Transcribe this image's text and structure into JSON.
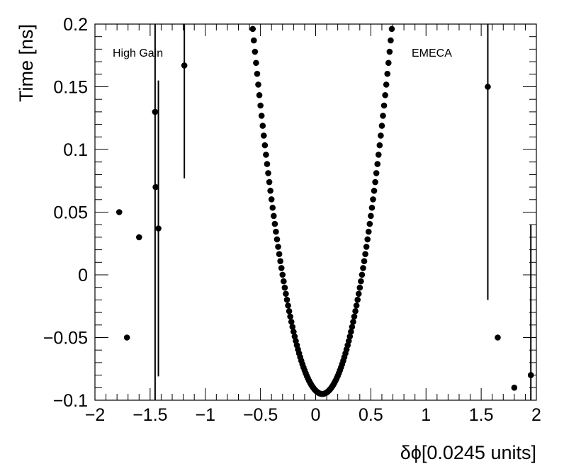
{
  "chart_data": {
    "type": "scatter",
    "xlabel": "δϕ[0.0245 units]",
    "ylabel": "Time [ns]",
    "xlim": [
      -2,
      2
    ],
    "ylim": [
      -0.1,
      0.2
    ],
    "x_ticks": [
      {
        "value": -2,
        "label": "−2"
      },
      {
        "value": -1.5,
        "label": "−1.5"
      },
      {
        "value": -1,
        "label": "−1"
      },
      {
        "value": -0.5,
        "label": "−0.5"
      },
      {
        "value": 0,
        "label": "0"
      },
      {
        "value": 0.5,
        "label": "0.5"
      },
      {
        "value": 1,
        "label": "1"
      },
      {
        "value": 1.5,
        "label": "1.5"
      },
      {
        "value": 2,
        "label": "2"
      }
    ],
    "y_ticks": [
      {
        "value": -0.1,
        "label": "−0.1"
      },
      {
        "value": -0.05,
        "label": "−0.05"
      },
      {
        "value": 0,
        "label": "0"
      },
      {
        "value": 0.05,
        "label": "0.05"
      },
      {
        "value": 0.1,
        "label": "0.1"
      },
      {
        "value": 0.15,
        "label": "0.15"
      },
      {
        "value": 0.2,
        "label": "0.2"
      }
    ],
    "annotations": [
      {
        "text": "High Gain",
        "x": -1.8,
        "y": 0.18
      },
      {
        "text": "EMECA",
        "x": 0.88,
        "y": 0.18
      }
    ],
    "outliers": [
      {
        "x": -1.78,
        "y": 0.05
      },
      {
        "x": -1.71,
        "y": -0.05
      },
      {
        "x": -1.6,
        "y": 0.03
      },
      {
        "x": -1.455,
        "y": 0.13,
        "err_low": 0.23,
        "err_high": 0.23
      },
      {
        "x": -1.45,
        "y": 0.07
      },
      {
        "x": -1.425,
        "y": 0.037,
        "err_low": 0.118,
        "err_high": 0.118
      },
      {
        "x": -1.19,
        "y": 0.167,
        "err_low": 0.09,
        "err_high": 0.09
      },
      {
        "x": 1.56,
        "y": 0.15,
        "err_low": 0.17,
        "err_high": 0.17
      },
      {
        "x": 1.65,
        "y": -0.05
      },
      {
        "x": 1.8,
        "y": -0.09
      },
      {
        "x": 1.95,
        "y": -0.08,
        "err_low": 0.12,
        "err_high": 0.12
      }
    ],
    "curve": {
      "x_min": -0.58,
      "x_max": 0.7,
      "step": 0.01,
      "vertex_x": 0.06,
      "vertex_y": -0.095,
      "curvature": 0.7335
    }
  },
  "style": {
    "marker_color": "#000000",
    "frame_color": "#000000"
  }
}
